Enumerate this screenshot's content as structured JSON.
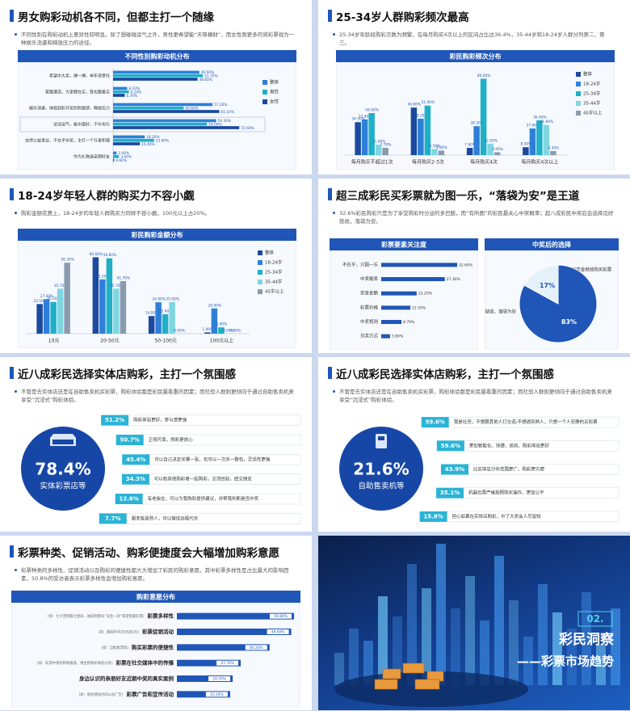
{
  "slides": [
    {
      "title": "男女购彩动机各不同，但都主打一个随缘",
      "description": "不同性别在购彩动机上差异性较明显。除了想碰碰运气之外，男性更希望能“天降横财”，而女性则更多的将彩票视为一种娱乐消遣和释放压力的途径。",
      "chart": {
        "type": "hbar-group",
        "title": "不同性别购彩动机分布",
        "categories": [
          "希望中大奖，搏一搏，单车变摩托",
          "紧跟潮流，大家都在买，我也跟着买",
          "娱乐消遣，体验刮彩开奖的刺激感，释放压力",
          "试试运气，能中最好，不中也行",
          "支持公益事业，不在乎中奖，主打一个行善积德",
          "作为礼物送亲朋好友"
        ],
        "series": [
          {
            "name": "整体",
            "color": "#2f7fd8",
            "values": [
              49.6,
              8.1,
              57.2,
              59.3,
              18.2,
              2.0
            ],
            "value_labels": [
              "49.60%",
              "8.10%",
              "57.20%",
              "59.30%",
              "18.20%",
              "2.00%"
            ]
          },
          {
            "name": "男性",
            "color": "#1fb0c8",
            "values": [
              51.7,
              9.1,
              40.6,
              54.0,
              23.6,
              3.4
            ],
            "value_labels": [
              "51.70%",
              "9.10%",
              "40.60%",
              "54.00%",
              "23.60%",
              "3.40%"
            ]
          },
          {
            "name": "女性",
            "color": "#1a4aa0",
            "values": [
              48.6,
              6.7,
              61.1,
              72.6,
              15.4,
              0.6
            ],
            "value_labels": [
              "48.60%",
              "6.70%",
              "61.10%",
              "72.60%",
              "15.40%",
              "0.60%"
            ]
          }
        ]
      }
    },
    {
      "title": "25-34岁人群购彩频次最高",
      "description": "25-34岁年龄段购彩次数为频繁，在每月购买4次以上的区间占比达36.4%，35-44岁和18-24岁人群分列第二、第三。",
      "chart": {
        "type": "bar-group",
        "title": "彩民购彩频次分布",
        "categories": [
          "每月购买不超过1次",
          "每月购买2-3次",
          "每月购买4次",
          "每月购买4次以上"
        ],
        "series": [
          {
            "name": "整体",
            "color": "#1a4aa0",
            "values": [
              34.5,
              49.8,
              7.6,
              8.3
            ],
            "value_labels": [
              "34.50%",
              "49.80%",
              "7.60%",
              "8.30%"
            ]
          },
          {
            "name": "18-24岁",
            "color": "#2f7fd8",
            "values": [
              37.4,
              38.2,
              30.3,
              27.9
            ],
            "value_labels": [
              "37.40%",
              "38.20%",
              "30.30%",
              "27.90%"
            ]
          },
          {
            "name": "25-34岁",
            "color": "#1fb0c8",
            "values": [
              44.0,
              51.9,
              80.0,
              36.4
            ],
            "value_labels": [
              "44.00%",
              "51.90%",
              "80.00%",
              "36.40%"
            ]
          },
          {
            "name": "35-44岁",
            "color": "#7fd6e0",
            "values": [
              11.0,
              6.5,
              12.0,
              31.6
            ],
            "value_labels": [
              "11.00%",
              "6.50%",
              "12.00%",
              "31.60%"
            ]
          },
          {
            "name": "45岁以上",
            "color": "#8a9bb0",
            "values": [
              7.7,
              4.8,
              3.0,
              4.3
            ],
            "value_labels": [
              "7.70%",
              "4.80%",
              "3.00%",
              "4.30%"
            ]
          }
        ]
      }
    },
    {
      "title": "18-24岁年轻人群的购买力不容小觑",
      "description": "购彩金额花费上，18-24岁的年轻人群购买力同样不容小觑，100元以上占20%。",
      "chart": {
        "type": "bar-group",
        "title": "彩民购彩金额分布",
        "categories": [
          "10元",
          "20-50元",
          "50-100元",
          "100元以上"
        ],
        "series": [
          {
            "name": "整体",
            "color": "#1a4aa0",
            "values": [
              23.5,
              60.6,
              14.0,
              1.0
            ],
            "value_labels": [
              "23.50%",
              "60.60%",
              "14.00%",
              "1.00%"
            ]
          },
          {
            "name": "18-24岁",
            "color": "#2f7fd8",
            "values": [
              27.4,
              43.1,
              24.9,
              20.0
            ],
            "value_labels": [
              "27.40%",
              "43.10%",
              "24.90%",
              "20.00%"
            ]
          },
          {
            "name": "25-34岁",
            "color": "#1fb0c8",
            "values": [
              25.2,
              59.8,
              15.4,
              5.0
            ],
            "value_labels": [
              "25.20%",
              "59.80%",
              "15.40%",
              "5.00%"
            ]
          },
          {
            "name": "35-44岁",
            "color": "#7fd6e0",
            "values": [
              35.7,
              35.7,
              25.0,
              0.0
            ],
            "value_labels": [
              "35.70%",
              "35.70%",
              "25.00%",
              "0.00%"
            ]
          },
          {
            "name": "45岁以上",
            "color": "#8a9bb0",
            "values": [
              56.3,
              41.7,
              0.0,
              0.0
            ],
            "value_labels": [
              "56.30%",
              "41.70%",
              "0.00%",
              "0.00%"
            ]
          }
        ]
      }
    },
    {
      "title": "超三成彩民买彩票就为图一乐，“落袋为安”是王道",
      "description": "32.6%彩民购彩只是为了享受购彩时分泌的多巴胺，而“有所图”的彩民最关心中奖概率；超八成彩民中奖后会选择见好就收，落袋为安。",
      "charts": [
        {
          "type": "hbar",
          "title": "彩票要素关注度",
          "color": "#1f56b8",
          "categories": [
            "不在乎，只图一乐",
            "中奖概率",
            "奖金金额",
            "彩票价格",
            "中奖规则",
            "兑奖方式"
          ],
          "values": [
            32.6,
            27.3,
            15.2,
            12.5,
            8.7,
            3.8
          ],
          "value_labels": [
            "32.60%",
            "27.30%",
            "15.20%",
            "12.50%",
            "8.70%",
            "3.80%"
          ]
        },
        {
          "type": "pie",
          "title": "中奖后的选择",
          "colors": [
            "#e4f1fb",
            "#1f56b8"
          ],
          "categories": [
            "用奖金继续购买彩票",
            "见好就收，落袋为安"
          ],
          "values": [
            17,
            83
          ],
          "value_labels": [
            "17%",
            "83%"
          ]
        }
      ]
    },
    {
      "title": "近八成彩民选择实体店购彩，主打一个氛围感",
      "description": "不管是去实体店还是在自助售卖机买彩票，购彩体验都是彩民最看重的因素；而社恐人群则更倾向于通过自助售卖机来享受“沉浸式”购彩体验。",
      "highlight": {
        "percent": "78.4%",
        "label": "实体彩票店等"
      },
      "items": [
        {
          "percent": "51.2%",
          "text": "购彩体验更好，参与感更强"
        },
        {
          "percent": "50.7%",
          "text": "正规可靠，购彩更放心"
        },
        {
          "percent": "45.4%",
          "text": "可以自己决定买哪一张，也可以一次买一整包，灵活性更强"
        },
        {
          "percent": "34.3%",
          "text": "可以和其他购彩者一起购彩，交流经验，结交朋友"
        },
        {
          "percent": "12.6%",
          "text": "有老板在，可以为我购彩提供建议，并帮我判断是否中奖"
        },
        {
          "percent": "7.7%",
          "text": "跟老板是熟人，可以微信远程代买"
        }
      ]
    },
    {
      "title": "近八成彩民选择实体店购彩，主打一个氛围感",
      "description": "不管是去实体店还是在自助售卖机买彩票，购彩体验都是彩民最看重的因素；而社恐人群则更倾向于通过自助售卖机来享受“沉浸式”购彩体验。",
      "highlight": {
        "percent": "21.6%",
        "label": "自助售卖机等"
      },
      "items": [
        {
          "percent": "59.6%",
          "text": "我是社恐，不想跟其他人打交道/不想遇到熟人，只想一个人安静的买彩票"
        },
        {
          "percent": "59.6%",
          "text": "更加智能化，快捷，高效，购彩体验更好"
        },
        {
          "percent": "43.9%",
          "text": "比实体店分布范围更广，购彩更方便"
        },
        {
          "percent": "35.1%",
          "text": "机器出票严格按照购买操作，更加公平"
        },
        {
          "percent": "15.8%",
          "text": "担心如果在实体店购彩，中了大奖会人尽皆知"
        }
      ]
    },
    {
      "title": "彩票种类、促销活动、购彩便捷度会大幅增加购彩意愿",
      "description": "彩票种类的多样性、促销活动以及购彩的便捷性都大大增加了彩民的购彩意愿。其中彩票多样性是占比最大的影响因素，50.8%的受访者表示彩票多样性会增加购彩意愿。",
      "chart": {
        "type": "hbar-note",
        "title": "购彩意愿分布",
        "color": "#1f56b8",
        "notes": [
          "(如：七夕定制版七星彩、福彩刮刮乐“天生一对”等定制版彩票)",
          "(如：刮刮乐中20元送2元)",
          "(如：自助售票机)",
          "(如：彩票中奖的新闻报道、博主的购彩体验分享)",
          null,
          "(如：倡导感动力的公益广告)"
        ],
        "categories": [
          "彩票多样性",
          "彩票促销活动",
          "购买彩票的便捷性",
          "彩票在社交媒体中的传播",
          "身边认识的亲朋好友近期中奖的真实案例",
          "彩票广告和宣传活动"
        ],
        "values": [
          50.8,
          49.6,
          40.2,
          27.7,
          24.2,
          23.1
        ],
        "value_labels": [
          "50.80%",
          "49.60%",
          "40.20%",
          "27.70%",
          "24.20%",
          "23.10%"
        ]
      }
    }
  ],
  "cover": {
    "number": "02.",
    "title": "彩民洞察",
    "subtitle": "——彩票市场趋势"
  }
}
